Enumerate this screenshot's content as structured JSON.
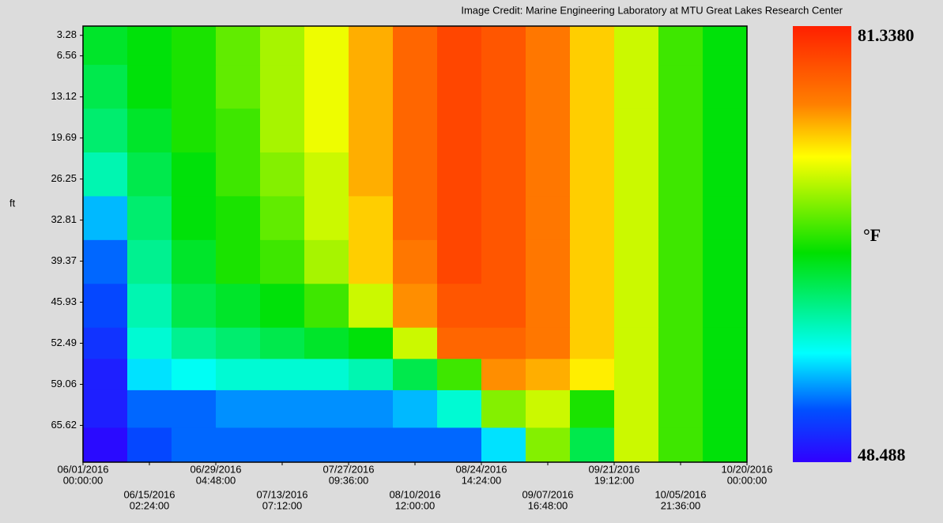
{
  "chart_data": {
    "type": "heatmap",
    "credit": "Image Credit: Marine Engineering Laboratory at MTU Great Lakes Research Center",
    "ylabel": "ft",
    "xlim": [
      0,
      141
    ],
    "ylim": [
      1.8,
      71.5
    ],
    "yticks": [
      3.28,
      6.56,
      13.12,
      19.69,
      26.25,
      32.81,
      39.37,
      45.93,
      52.49,
      59.06,
      65.62
    ],
    "xticks": [
      {
        "value": 0,
        "label": [
          "06/01/2016",
          "00:00:00"
        ]
      },
      {
        "value": 14.1,
        "label": [
          "06/15/2016",
          "02:24:00"
        ]
      },
      {
        "value": 28.2,
        "label": [
          "06/29/2016",
          "04:48:00"
        ]
      },
      {
        "value": 42.3,
        "label": [
          "07/13/2016",
          "07:12:00"
        ]
      },
      {
        "value": 56.4,
        "label": [
          "07/27/2016",
          "09:36:00"
        ]
      },
      {
        "value": 70.5,
        "label": [
          "08/10/2016",
          "12:00:00"
        ]
      },
      {
        "value": 84.6,
        "label": [
          "08/24/2016",
          "14:24:00"
        ]
      },
      {
        "value": 98.7,
        "label": [
          "09/07/2016",
          "16:48:00"
        ]
      },
      {
        "value": 112.8,
        "label": [
          "09/21/2016",
          "19:12:00"
        ]
      },
      {
        "value": 126.9,
        "label": [
          "10/05/2016",
          "21:36:00"
        ]
      },
      {
        "value": 141,
        "label": [
          "10/20/2016",
          "00:00:00"
        ]
      }
    ],
    "x_bins": [
      0,
      9.4,
      18.8,
      28.2,
      37.6,
      47,
      56.4,
      65.8,
      75.2,
      84.6,
      94,
      103.4,
      112.8,
      122.2,
      131.6,
      141
    ],
    "y_bins": [
      1.8,
      8,
      15,
      22,
      29,
      36,
      43,
      50,
      55,
      60,
      66,
      71.5
    ],
    "z": [
      [
        63,
        64,
        65,
        67,
        69,
        71,
        74,
        77,
        79,
        78,
        76,
        73,
        70,
        66,
        64
      ],
      [
        62,
        64,
        65,
        67,
        69,
        71,
        74,
        77,
        79,
        78,
        76,
        73,
        70,
        66,
        64
      ],
      [
        61,
        63,
        65,
        66,
        69,
        71,
        74,
        77,
        79,
        78,
        76,
        73,
        70,
        66,
        64
      ],
      [
        59,
        62,
        64,
        66,
        68,
        70,
        74,
        77,
        79,
        78,
        76,
        73,
        70,
        66,
        64
      ],
      [
        55,
        61,
        64,
        65,
        67,
        70,
        73,
        77,
        79,
        78,
        76,
        73,
        70,
        66,
        64
      ],
      [
        53,
        60,
        63,
        65,
        66,
        69,
        73,
        76,
        79,
        78,
        76,
        73,
        70,
        66,
        64
      ],
      [
        52,
        59,
        62,
        63,
        64,
        66,
        70,
        75,
        78,
        78,
        76,
        73,
        70,
        66,
        64
      ],
      [
        51,
        58,
        60,
        61,
        62,
        63,
        64,
        70,
        77,
        77,
        76,
        73,
        70,
        66,
        64
      ],
      [
        50,
        56,
        57,
        58,
        58,
        58,
        59,
        62,
        66,
        75,
        74,
        72,
        70,
        66,
        64
      ],
      [
        50,
        53,
        53,
        54,
        54,
        54,
        54,
        55,
        58,
        68,
        70,
        65,
        70,
        66,
        64
      ],
      [
        49,
        52,
        53,
        53,
        53,
        53,
        53,
        53,
        53,
        56,
        68,
        62,
        70,
        66,
        64
      ]
    ],
    "colorbar": {
      "min": 48.488,
      "max": {
        "value": 81.338,
        "label": "81.3380"
      },
      "unit": "°F",
      "min_color": "#3a2cc8",
      "max_color": "#d21010"
    },
    "colorscale": [
      "#3000ff",
      "#0050ff",
      "#00ffff",
      "#00e000",
      "#ffff00",
      "#ff8000",
      "#ff2000"
    ],
    "colorscale_stops": [
      0,
      0.12,
      0.25,
      0.48,
      0.7,
      0.82,
      1
    ]
  }
}
